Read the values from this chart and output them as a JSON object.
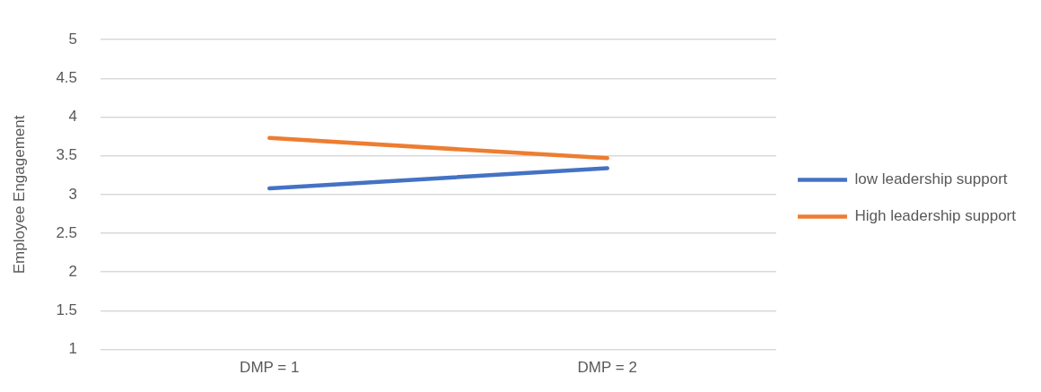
{
  "chart_data": {
    "type": "line",
    "ylabel": "Employee Engagement",
    "categories": [
      "DMP = 1",
      "DMP = 2"
    ],
    "series": [
      {
        "name": "low leadership support",
        "color": "#4472c4",
        "values": [
          3.08,
          3.34
        ]
      },
      {
        "name": "High leadership support",
        "color": "#ed7d31",
        "values": [
          3.73,
          3.47
        ]
      }
    ],
    "ylim": [
      1,
      5
    ],
    "yticks": [
      1,
      1.5,
      2,
      2.5,
      3,
      3.5,
      4,
      4.5,
      5
    ],
    "grid": "y",
    "legend": "right",
    "marker": "none",
    "line_style": "solid"
  }
}
